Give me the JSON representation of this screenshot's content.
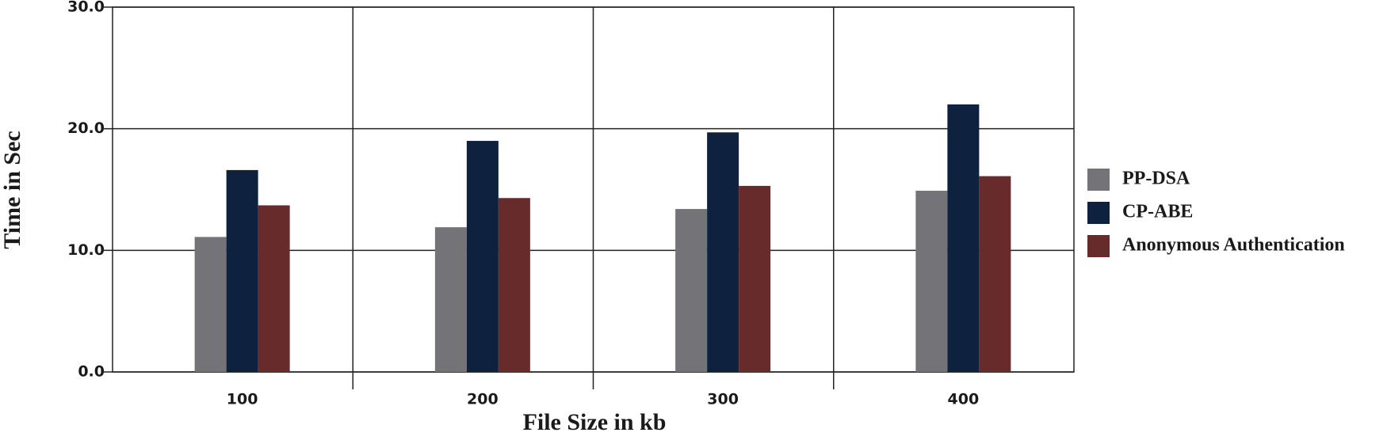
{
  "chart_data": {
    "type": "bar",
    "x_label": "File Size in kb",
    "y_label": "Time in Sec",
    "categories": [
      "100",
      "200",
      "300",
      "400"
    ],
    "series": [
      {
        "name": "PP-DSA",
        "color": "#737378",
        "values": [
          11.1,
          11.9,
          13.4,
          14.9
        ]
      },
      {
        "name": "CP-ABE",
        "color": "#0e213f",
        "values": [
          16.6,
          19.0,
          19.7,
          22.0
        ]
      },
      {
        "name": "Anonymous Authentication",
        "color": "#682b2b",
        "values": [
          13.7,
          14.3,
          15.3,
          16.1
        ]
      }
    ],
    "ylim": [
      0,
      30
    ],
    "yticks": [
      {
        "value": 0,
        "label": "0.0"
      },
      {
        "value": 10,
        "label": "10.0"
      },
      {
        "value": 20,
        "label": "20.0"
      },
      {
        "value": 30,
        "label": "30.0"
      }
    ],
    "grid": true,
    "legend": "right"
  }
}
